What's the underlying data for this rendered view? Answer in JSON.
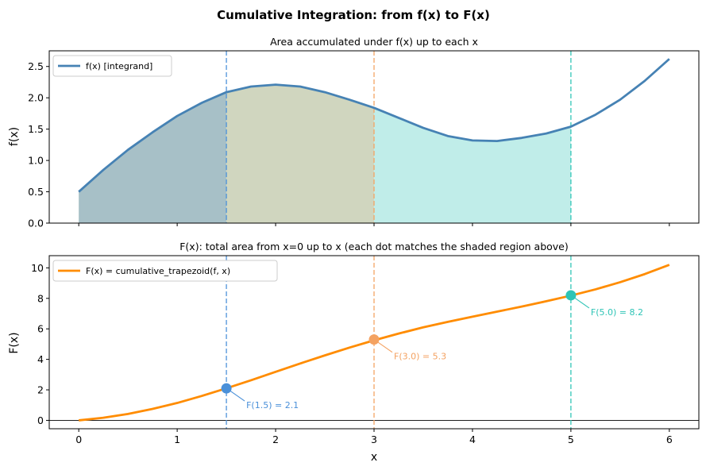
{
  "figure": {
    "title": "Cumulative Integration: from f(x) to F(x)"
  },
  "chart_data": [
    {
      "type": "area",
      "title": "Area accumulated under f(x) up to each x",
      "xlabel": "",
      "ylabel": "f(x)",
      "xlim": [
        -0.3,
        6.3
      ],
      "ylim": [
        0,
        2.75
      ],
      "yticks": [
        0.0,
        0.5,
        1.0,
        1.5,
        2.0,
        2.5
      ],
      "ytick_labels": [
        "0.0",
        "0.5",
        "1.0",
        "1.5",
        "2.0",
        "2.5"
      ],
      "xticks": [
        0,
        1,
        2,
        3,
        4,
        5,
        6
      ],
      "legend": {
        "placement": "upper-left",
        "entries": [
          "f(x)  [integrand]"
        ]
      },
      "series": [
        {
          "name": "f(x)  [integrand]",
          "color": "#4682b4",
          "x": [
            0,
            0.25,
            0.5,
            0.75,
            1.0,
            1.25,
            1.5,
            1.75,
            2.0,
            2.25,
            2.5,
            2.75,
            3.0,
            3.25,
            3.5,
            3.75,
            4.0,
            4.25,
            4.5,
            4.75,
            5.0,
            5.25,
            5.5,
            5.75,
            6.0
          ],
          "y": [
            0.5,
            0.85,
            1.17,
            1.45,
            1.71,
            1.92,
            2.09,
            2.18,
            2.21,
            2.18,
            2.09,
            1.97,
            1.84,
            1.68,
            1.52,
            1.39,
            1.32,
            1.31,
            1.36,
            1.43,
            1.54,
            1.73,
            1.97,
            2.27,
            2.62
          ]
        }
      ],
      "shaded_regions": [
        {
          "x_from": 0,
          "x_to": 1.5,
          "color": "#4a90d9"
        },
        {
          "x_from": 0,
          "x_to": 3.0,
          "color": "#f4a261"
        },
        {
          "x_from": 0,
          "x_to": 5.0,
          "color": "#2ec4b6"
        }
      ],
      "vlines": [
        {
          "x": 1.5,
          "color": "#4a90d9"
        },
        {
          "x": 3.0,
          "color": "#f4a261"
        },
        {
          "x": 5.0,
          "color": "#2ec4b6"
        }
      ]
    },
    {
      "type": "line",
      "title": "F(x): total area from x=0 up to x  (each dot matches the shaded region above)",
      "xlabel": "x",
      "ylabel": "F(x)",
      "xlim": [
        -0.3,
        6.3
      ],
      "ylim": [
        -0.55,
        10.8
      ],
      "yticks": [
        0,
        2,
        4,
        6,
        8,
        10
      ],
      "ytick_labels": [
        "0",
        "2",
        "4",
        "6",
        "8",
        "10"
      ],
      "xticks": [
        0,
        1,
        2,
        3,
        4,
        5,
        6
      ],
      "xtick_labels": [
        "0",
        "1",
        "2",
        "3",
        "4",
        "5",
        "6"
      ],
      "hline_y": 0,
      "legend": {
        "placement": "upper-left",
        "entries": [
          "F(x) = cumulative_trapezoid(f, x)"
        ]
      },
      "series": [
        {
          "name": "F(x) = cumulative_trapezoid(f, x)",
          "color": "#ff8c00",
          "x": [
            0,
            0.25,
            0.5,
            0.75,
            1.0,
            1.25,
            1.5,
            1.75,
            2.0,
            2.25,
            2.5,
            2.75,
            3.0,
            3.25,
            3.5,
            3.75,
            4.0,
            4.25,
            4.5,
            4.75,
            5.0,
            5.25,
            5.5,
            5.75,
            6.0
          ],
          "y": [
            0,
            0.17,
            0.42,
            0.75,
            1.14,
            1.6,
            2.1,
            2.63,
            3.18,
            3.73,
            4.26,
            4.77,
            5.25,
            5.69,
            6.1,
            6.46,
            6.8,
            7.13,
            7.46,
            7.81,
            8.18,
            8.59,
            9.06,
            9.59,
            10.2
          ]
        }
      ],
      "points": [
        {
          "x": 1.5,
          "y": 2.1,
          "label": "F(1.5) = 2.1",
          "color": "#4a90d9"
        },
        {
          "x": 3.0,
          "y": 5.3,
          "label": "F(3.0) = 5.3",
          "color": "#f4a261"
        },
        {
          "x": 5.0,
          "y": 8.2,
          "label": "F(5.0) = 8.2",
          "color": "#2ec4b6"
        }
      ]
    }
  ]
}
